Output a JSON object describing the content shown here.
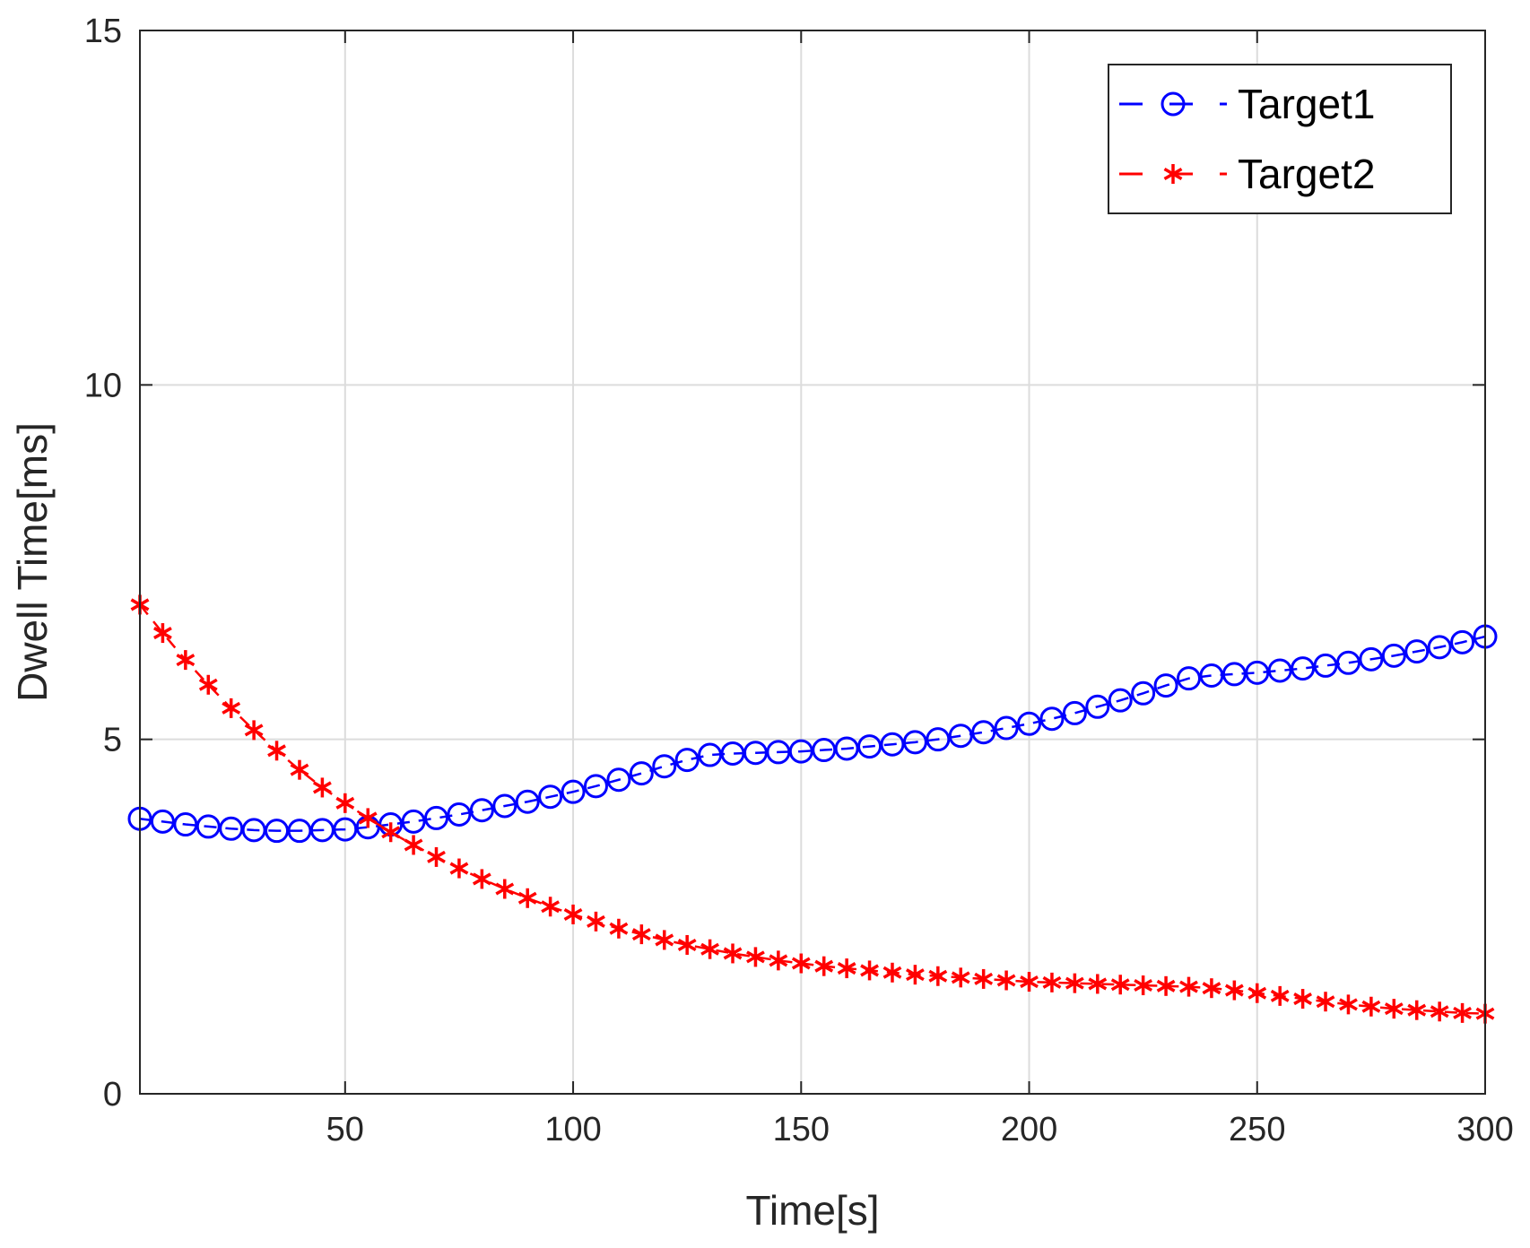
{
  "chart_data": {
    "type": "line",
    "xlabel": "Time[s]",
    "ylabel": "Dwell Time[ms]",
    "xlim": [
      5,
      300
    ],
    "ylim": [
      0,
      15
    ],
    "xticks": [
      50,
      100,
      150,
      200,
      250,
      300
    ],
    "yticks": [
      0,
      5,
      10,
      15
    ],
    "grid": true,
    "legend_position": "top-right",
    "x": [
      5,
      10,
      15,
      20,
      25,
      30,
      35,
      40,
      45,
      50,
      55,
      60,
      65,
      70,
      75,
      80,
      85,
      90,
      95,
      100,
      105,
      110,
      115,
      120,
      125,
      130,
      135,
      140,
      145,
      150,
      155,
      160,
      165,
      170,
      175,
      180,
      185,
      190,
      195,
      200,
      205,
      210,
      215,
      220,
      225,
      230,
      235,
      240,
      245,
      250,
      255,
      260,
      265,
      270,
      275,
      280,
      285,
      290,
      295,
      300
    ],
    "series": [
      {
        "name": "Target1",
        "color": "#0000ff",
        "marker": "circle",
        "line_style": "dashed",
        "values": [
          3.88,
          3.84,
          3.8,
          3.77,
          3.74,
          3.72,
          3.71,
          3.71,
          3.72,
          3.73,
          3.76,
          3.8,
          3.84,
          3.89,
          3.94,
          4.0,
          4.06,
          4.12,
          4.19,
          4.26,
          4.34,
          4.43,
          4.52,
          4.62,
          4.71,
          4.78,
          4.8,
          4.81,
          4.82,
          4.83,
          4.85,
          4.87,
          4.9,
          4.93,
          4.96,
          5.0,
          5.05,
          5.1,
          5.16,
          5.22,
          5.29,
          5.37,
          5.46,
          5.55,
          5.65,
          5.76,
          5.86,
          5.9,
          5.92,
          5.94,
          5.97,
          6.0,
          6.04,
          6.08,
          6.13,
          6.18,
          6.24,
          6.3,
          6.37,
          6.45
        ]
      },
      {
        "name": "Target2",
        "color": "#ff0000",
        "marker": "asterisk",
        "line_style": "dashed",
        "values": [
          6.9,
          6.5,
          6.12,
          5.77,
          5.44,
          5.13,
          4.84,
          4.57,
          4.32,
          4.1,
          3.89,
          3.69,
          3.51,
          3.34,
          3.18,
          3.03,
          2.89,
          2.76,
          2.64,
          2.53,
          2.43,
          2.33,
          2.25,
          2.17,
          2.1,
          2.04,
          1.98,
          1.93,
          1.88,
          1.84,
          1.8,
          1.77,
          1.74,
          1.71,
          1.68,
          1.66,
          1.64,
          1.62,
          1.6,
          1.58,
          1.57,
          1.56,
          1.55,
          1.54,
          1.53,
          1.52,
          1.51,
          1.49,
          1.46,
          1.42,
          1.38,
          1.34,
          1.3,
          1.26,
          1.23,
          1.2,
          1.18,
          1.16,
          1.14,
          1.13
        ]
      }
    ]
  }
}
